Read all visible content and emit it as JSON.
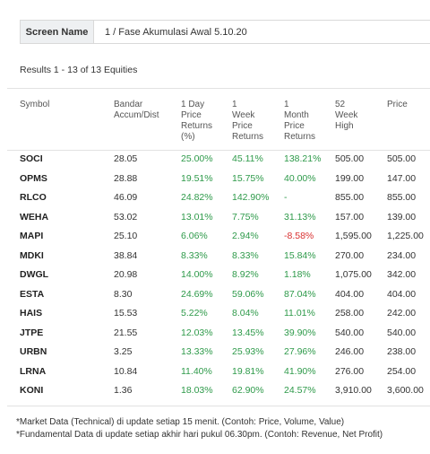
{
  "screen": {
    "label": "Screen Name",
    "value": "1 / Fase Akumulasi Awal 5.10.20"
  },
  "results_text": "Results 1 - 13 of 13 Equities",
  "columns": [
    "Symbol",
    "Bandar\nAccum/Dist",
    "1 Day\nPrice\nReturns\n(%)",
    "1\nWeek\nPrice\nReturns",
    "1\nMonth\nPrice\nReturns",
    "52\nWeek\nHigh",
    "Price"
  ],
  "rows": [
    {
      "symbol": "SOCI",
      "bandar": "28.05",
      "day": "25.00%",
      "week": "45.11%",
      "month": "138.21%",
      "high": "505.00",
      "price": "505.00"
    },
    {
      "symbol": "OPMS",
      "bandar": "28.88",
      "day": "19.51%",
      "week": "15.75%",
      "month": "40.00%",
      "high": "199.00",
      "price": "147.00"
    },
    {
      "symbol": "RLCO",
      "bandar": "46.09",
      "day": "24.82%",
      "week": "142.90%",
      "month": "-",
      "high": "855.00",
      "price": "855.00"
    },
    {
      "symbol": "WEHA",
      "bandar": "53.02",
      "day": "13.01%",
      "week": "7.75%",
      "month": "31.13%",
      "high": "157.00",
      "price": "139.00"
    },
    {
      "symbol": "MAPI",
      "bandar": "25.10",
      "day": "6.06%",
      "week": "2.94%",
      "month": "-8.58%",
      "high": "1,595.00",
      "price": "1,225.00"
    },
    {
      "symbol": "MDKI",
      "bandar": "38.84",
      "day": "8.33%",
      "week": "8.33%",
      "month": "15.84%",
      "high": "270.00",
      "price": "234.00"
    },
    {
      "symbol": "DWGL",
      "bandar": "20.98",
      "day": "14.00%",
      "week": "8.92%",
      "month": "1.18%",
      "high": "1,075.00",
      "price": "342.00"
    },
    {
      "symbol": "ESTA",
      "bandar": "8.30",
      "day": "24.69%",
      "week": "59.06%",
      "month": "87.04%",
      "high": "404.00",
      "price": "404.00"
    },
    {
      "symbol": "HAIS",
      "bandar": "15.53",
      "day": "5.22%",
      "week": "8.04%",
      "month": "11.01%",
      "high": "258.00",
      "price": "242.00"
    },
    {
      "symbol": "JTPE",
      "bandar": "21.55",
      "day": "12.03%",
      "week": "13.45%",
      "month": "39.90%",
      "high": "540.00",
      "price": "540.00"
    },
    {
      "symbol": "URBN",
      "bandar": "3.25",
      "day": "13.33%",
      "week": "25.93%",
      "month": "27.96%",
      "high": "246.00",
      "price": "238.00"
    },
    {
      "symbol": "LRNA",
      "bandar": "10.84",
      "day": "11.40%",
      "week": "19.81%",
      "month": "41.90%",
      "high": "276.00",
      "price": "254.00"
    },
    {
      "symbol": "KONI",
      "bandar": "1.36",
      "day": "18.03%",
      "week": "62.90%",
      "month": "24.57%",
      "high": "3,910.00",
      "price": "3,600.00"
    }
  ],
  "footnotes": [
    "*Market Data (Technical) di update setiap 15 menit. (Contoh: Price, Volume, Value)",
    "*Fundamental Data di update setiap akhir hari pukul 06.30pm. (Contoh: Revenue, Net Profit)"
  ],
  "colors": {
    "positive": "#2e9a4a",
    "negative": "#d93030"
  }
}
